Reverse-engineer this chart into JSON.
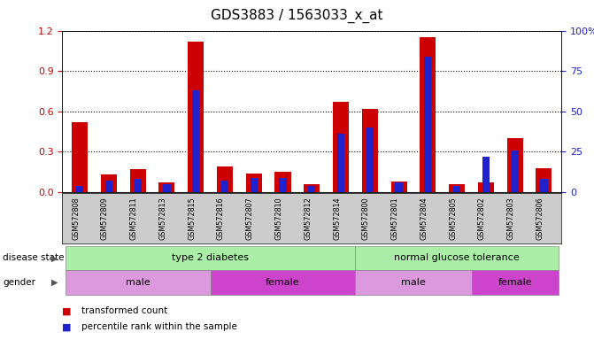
{
  "title": "GDS3883 / 1563033_x_at",
  "samples": [
    "GSM572808",
    "GSM572809",
    "GSM572811",
    "GSM572813",
    "GSM572815",
    "GSM572816",
    "GSM572807",
    "GSM572810",
    "GSM572812",
    "GSM572814",
    "GSM572800",
    "GSM572801",
    "GSM572804",
    "GSM572805",
    "GSM572802",
    "GSM572803",
    "GSM572806"
  ],
  "transformed_count": [
    0.52,
    0.13,
    0.17,
    0.07,
    1.12,
    0.19,
    0.14,
    0.15,
    0.06,
    0.67,
    0.62,
    0.08,
    1.15,
    0.06,
    0.07,
    0.4,
    0.18
  ],
  "percentile_rank": [
    4,
    7,
    8,
    5,
    63,
    7,
    9,
    9,
    4,
    36,
    40,
    6,
    84,
    4,
    22,
    26,
    8
  ],
  "bar_color": "#cc0000",
  "blue_color": "#2222cc",
  "ylim_left": [
    0,
    1.2
  ],
  "ylim_right": [
    0,
    100
  ],
  "yticks_left": [
    0,
    0.3,
    0.6,
    0.9,
    1.2
  ],
  "yticks_right": [
    0,
    25,
    50,
    75,
    100
  ],
  "disease_state_groups": [
    {
      "label": "type 2 diabetes",
      "start": 0,
      "end": 9,
      "color": "#aaeea8"
    },
    {
      "label": "normal glucose tolerance",
      "start": 10,
      "end": 16,
      "color": "#aaeea8"
    }
  ],
  "gender_groups": [
    {
      "label": "male",
      "start": 0,
      "end": 4,
      "color": "#dd99dd"
    },
    {
      "label": "female",
      "start": 5,
      "end": 9,
      "color": "#cc44cc"
    },
    {
      "label": "male",
      "start": 10,
      "end": 13,
      "color": "#dd99dd"
    },
    {
      "label": "female",
      "start": 14,
      "end": 16,
      "color": "#cc44cc"
    }
  ],
  "legend_items": [
    {
      "label": "transformed count",
      "color": "#cc0000"
    },
    {
      "label": "percentile rank within the sample",
      "color": "#2222cc"
    }
  ],
  "bar_width": 0.55,
  "blue_bar_width": 0.25,
  "bg_color": "#ffffff",
  "title_fontsize": 11,
  "tick_fontsize": 8,
  "axis_label_color_left": "#cc0000",
  "axis_label_color_right": "#2222cc",
  "sample_bg_color": "#cccccc"
}
